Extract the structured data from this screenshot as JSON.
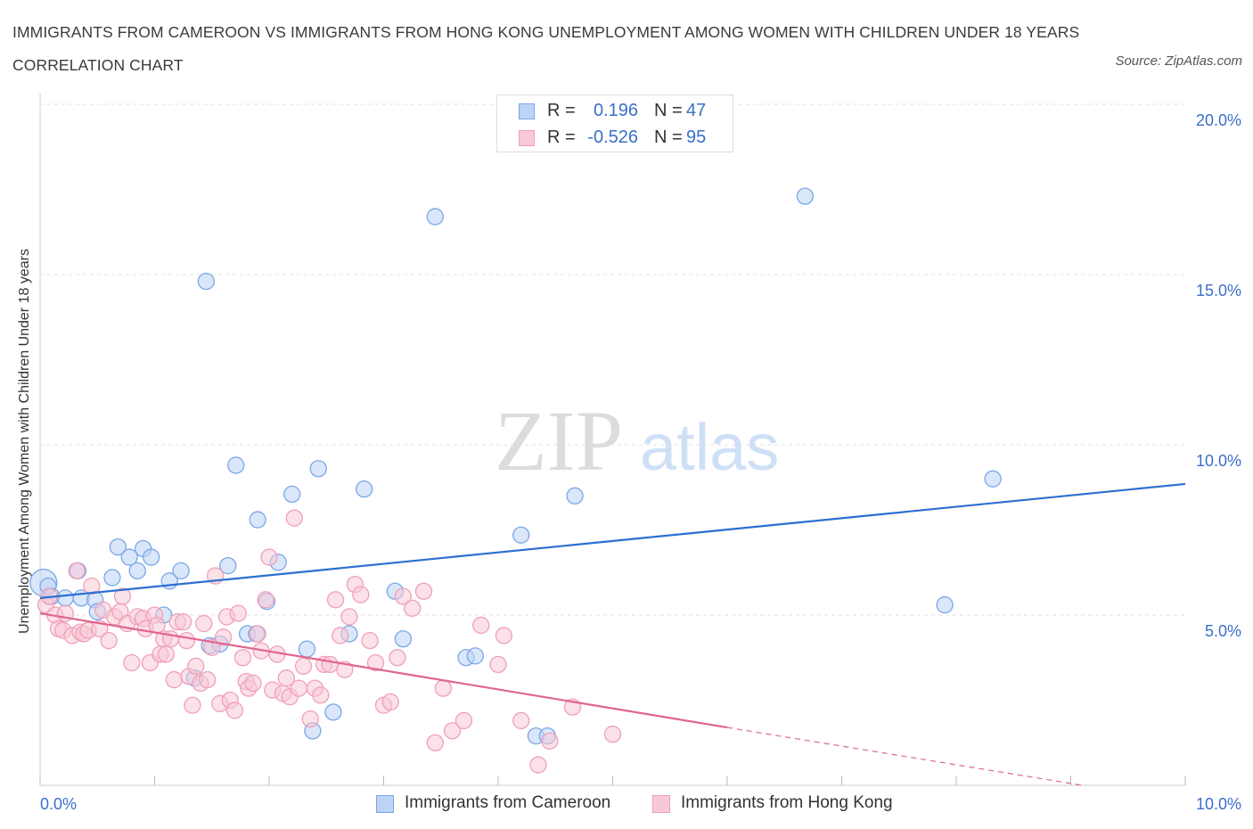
{
  "chart_data": {
    "type": "scatter",
    "title": "IMMIGRANTS FROM CAMEROON VS IMMIGRANTS FROM HONG KONG UNEMPLOYMENT AMONG WOMEN WITH CHILDREN UNDER 18 YEARS CORRELATION CHART",
    "source": "Source: ZipAtlas.com",
    "xlabel": "",
    "ylabel": "Unemployment Among Women with Children Under 18 years",
    "xlim": [
      0,
      10
    ],
    "ylim": [
      0,
      20
    ],
    "x_tick_labels": [
      {
        "value": 0,
        "label": "0.0%"
      },
      {
        "value": 10,
        "label": "10.0%"
      }
    ],
    "y_tick_labels": [
      {
        "value": 5,
        "label": "5.0%"
      },
      {
        "value": 10,
        "label": "10.0%"
      },
      {
        "value": 15,
        "label": "15.0%"
      },
      {
        "value": 20,
        "label": "20.0%"
      }
    ],
    "grid": true,
    "legend_position": "bottom-center",
    "watermark": "ZIPatlas",
    "stats": [
      {
        "r_label": "R =",
        "r_value": "0.196",
        "n_label": "N =",
        "n_value": "47"
      },
      {
        "r_label": "R =",
        "r_value": "-0.526",
        "n_label": "N =",
        "n_value": "95"
      }
    ],
    "series": [
      {
        "name": "Immigrants from Cameroon",
        "color": "#7aa6e8",
        "fill": "#bcd3f6",
        "trend": {
          "x": [
            0,
            10
          ],
          "y": [
            5.5,
            8.85
          ],
          "color": "#2d6fd1"
        },
        "points": [
          [
            0.03,
            5.95
          ],
          [
            0.07,
            5.85
          ],
          [
            0.1,
            5.55
          ],
          [
            0.22,
            5.5
          ],
          [
            0.33,
            6.3
          ],
          [
            0.36,
            5.5
          ],
          [
            0.48,
            5.45
          ],
          [
            0.5,
            5.1
          ],
          [
            0.63,
            6.1
          ],
          [
            0.68,
            7.0
          ],
          [
            0.78,
            6.7
          ],
          [
            0.85,
            6.3
          ],
          [
            0.9,
            6.95
          ],
          [
            0.97,
            6.7
          ],
          [
            1.08,
            5.0
          ],
          [
            1.13,
            6.0
          ],
          [
            1.23,
            6.3
          ],
          [
            1.35,
            3.15
          ],
          [
            1.45,
            14.8
          ],
          [
            1.48,
            4.1
          ],
          [
            1.57,
            4.15
          ],
          [
            1.64,
            6.45
          ],
          [
            1.71,
            9.4
          ],
          [
            1.81,
            4.45
          ],
          [
            1.89,
            4.45
          ],
          [
            1.9,
            7.8
          ],
          [
            1.98,
            5.4
          ],
          [
            2.08,
            6.55
          ],
          [
            2.2,
            8.55
          ],
          [
            2.33,
            4.0
          ],
          [
            2.38,
            1.6
          ],
          [
            2.43,
            9.3
          ],
          [
            2.56,
            2.15
          ],
          [
            2.7,
            4.45
          ],
          [
            2.83,
            8.7
          ],
          [
            3.1,
            5.7
          ],
          [
            3.17,
            4.3
          ],
          [
            3.45,
            16.7
          ],
          [
            3.72,
            3.75
          ],
          [
            3.8,
            3.8
          ],
          [
            4.2,
            7.35
          ],
          [
            4.33,
            1.45
          ],
          [
            4.43,
            1.45
          ],
          [
            4.67,
            8.5
          ],
          [
            6.68,
            17.3
          ],
          [
            7.9,
            5.3
          ],
          [
            8.32,
            9.0
          ]
        ]
      },
      {
        "name": "Immigrants from Hong Kong",
        "color": "#f0a0b8",
        "fill": "#f8c8d6",
        "trend": {
          "x": [
            0,
            6.0
          ],
          "y": [
            5.05,
            1.7
          ],
          "color": "#e0658e"
        },
        "trend_dashed": {
          "x": [
            6.0,
            9.1
          ],
          "y": [
            1.7,
            0.0
          ]
        },
        "points": [
          [
            0.05,
            5.3
          ],
          [
            0.08,
            5.55
          ],
          [
            0.13,
            5.0
          ],
          [
            0.16,
            4.6
          ],
          [
            0.2,
            4.55
          ],
          [
            0.22,
            5.05
          ],
          [
            0.28,
            4.4
          ],
          [
            0.32,
            6.3
          ],
          [
            0.35,
            4.5
          ],
          [
            0.38,
            4.45
          ],
          [
            0.42,
            4.55
          ],
          [
            0.45,
            5.85
          ],
          [
            0.52,
            4.6
          ],
          [
            0.55,
            5.15
          ],
          [
            0.6,
            4.25
          ],
          [
            0.65,
            4.95
          ],
          [
            0.7,
            5.1
          ],
          [
            0.72,
            5.55
          ],
          [
            0.76,
            4.75
          ],
          [
            0.8,
            3.6
          ],
          [
            0.85,
            4.95
          ],
          [
            0.9,
            4.9
          ],
          [
            0.92,
            4.6
          ],
          [
            0.96,
            3.6
          ],
          [
            1.0,
            5.0
          ],
          [
            1.02,
            4.7
          ],
          [
            1.05,
            3.85
          ],
          [
            1.08,
            4.3
          ],
          [
            1.1,
            3.85
          ],
          [
            1.14,
            4.3
          ],
          [
            1.17,
            3.1
          ],
          [
            1.2,
            4.8
          ],
          [
            1.25,
            4.8
          ],
          [
            1.28,
            4.25
          ],
          [
            1.3,
            3.2
          ],
          [
            1.33,
            2.35
          ],
          [
            1.36,
            3.5
          ],
          [
            1.4,
            3.0
          ],
          [
            1.43,
            4.75
          ],
          [
            1.46,
            3.1
          ],
          [
            1.5,
            4.05
          ],
          [
            1.53,
            6.15
          ],
          [
            1.57,
            2.4
          ],
          [
            1.6,
            4.35
          ],
          [
            1.63,
            4.95
          ],
          [
            1.66,
            2.5
          ],
          [
            1.7,
            2.2
          ],
          [
            1.73,
            5.05
          ],
          [
            1.77,
            3.75
          ],
          [
            1.8,
            3.05
          ],
          [
            1.82,
            2.85
          ],
          [
            1.86,
            3.0
          ],
          [
            1.9,
            4.45
          ],
          [
            1.93,
            3.95
          ],
          [
            1.97,
            5.45
          ],
          [
            2.0,
            6.7
          ],
          [
            2.03,
            2.8
          ],
          [
            2.07,
            3.85
          ],
          [
            2.12,
            2.7
          ],
          [
            2.15,
            3.15
          ],
          [
            2.18,
            2.6
          ],
          [
            2.22,
            7.85
          ],
          [
            2.26,
            2.85
          ],
          [
            2.3,
            3.5
          ],
          [
            2.36,
            1.95
          ],
          [
            2.4,
            2.85
          ],
          [
            2.45,
            2.65
          ],
          [
            2.48,
            3.55
          ],
          [
            2.53,
            3.55
          ],
          [
            2.58,
            5.45
          ],
          [
            2.62,
            4.4
          ],
          [
            2.66,
            3.4
          ],
          [
            2.7,
            4.95
          ],
          [
            2.75,
            5.9
          ],
          [
            2.8,
            5.6
          ],
          [
            2.88,
            4.25
          ],
          [
            2.93,
            3.6
          ],
          [
            3.0,
            2.35
          ],
          [
            3.06,
            2.45
          ],
          [
            3.12,
            3.75
          ],
          [
            3.17,
            5.55
          ],
          [
            3.25,
            5.2
          ],
          [
            3.35,
            5.7
          ],
          [
            3.45,
            1.25
          ],
          [
            3.52,
            2.85
          ],
          [
            3.6,
            1.6
          ],
          [
            3.7,
            1.9
          ],
          [
            3.85,
            4.7
          ],
          [
            4.0,
            3.55
          ],
          [
            4.05,
            4.4
          ],
          [
            4.2,
            1.9
          ],
          [
            4.35,
            0.6
          ],
          [
            4.45,
            1.3
          ],
          [
            4.65,
            2.3
          ],
          [
            5.0,
            1.5
          ]
        ]
      }
    ]
  }
}
